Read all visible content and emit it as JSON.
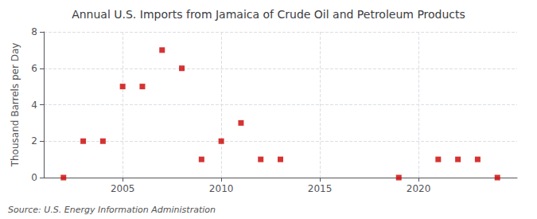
{
  "chart_data": {
    "type": "scatter",
    "title": "Annual U.S. Imports from Jamaica of Crude Oil and Petroleum Products",
    "ylabel": "Thousand Barrels per Day",
    "annotation": "Source: U.S. Energy Information Administration",
    "x": [
      2002,
      2003,
      2004,
      2005,
      2006,
      2007,
      2008,
      2009,
      2010,
      2011,
      2012,
      2013,
      2019,
      2021,
      2022,
      2023,
      2024
    ],
    "values": [
      0,
      2,
      2,
      5,
      5,
      7,
      6,
      1,
      2,
      3,
      1,
      1,
      0,
      1,
      1,
      1,
      0
    ],
    "color": "#cc0000",
    "marker": "square",
    "xlim": [
      2001,
      2025
    ],
    "xticks": [
      2005,
      2010,
      2015,
      2020
    ],
    "ylim": [
      0,
      8
    ],
    "yticks": [
      0,
      2,
      4,
      6,
      8
    ],
    "grid": true
  }
}
